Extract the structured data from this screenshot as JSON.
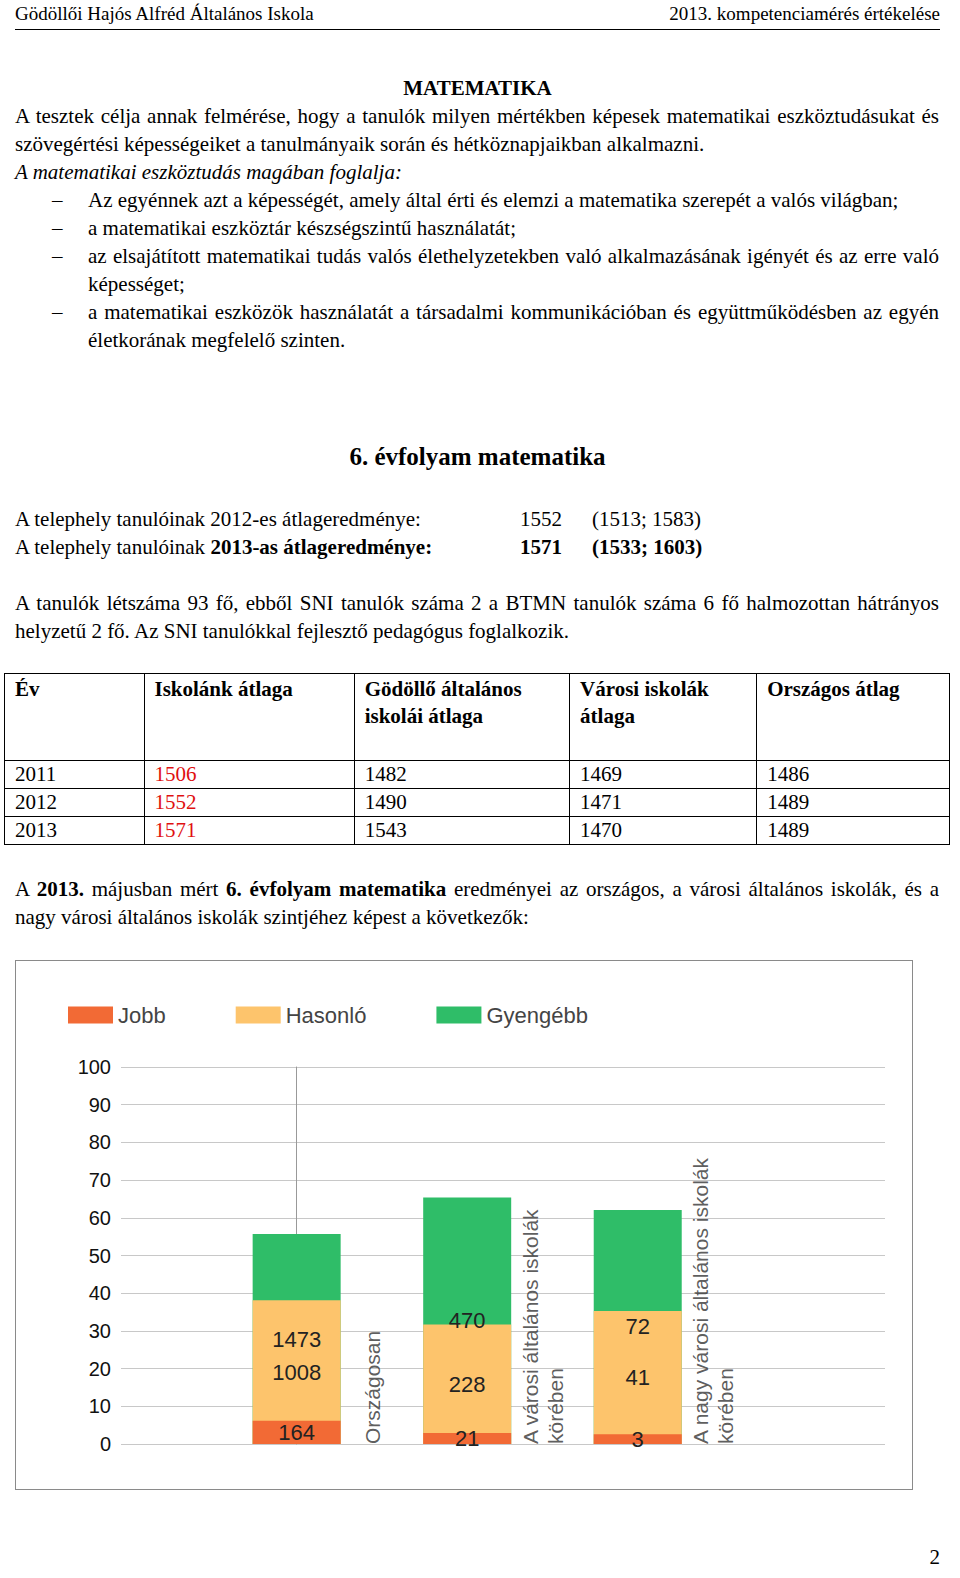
{
  "header": {
    "left": "Gödöllői Hajós Alfréd Általános Iskola",
    "right": "2013. kompetenciamérés értékelése"
  },
  "title": "MATEMATIKA",
  "intro": [
    {
      "kind": "p",
      "runs": [
        {
          "text": "A tesztek célja annak felmérése, hogy a tanulók milyen mértékben képesek matematikai eszköztudásukat és szövegértési képességeiket a tanulmányaik során és hétköznapjaikban alkalmazni."
        }
      ]
    },
    {
      "kind": "p",
      "runs": [
        {
          "text": "A matematikai eszköztudás magában foglalja:",
          "italic": true
        }
      ]
    },
    {
      "kind": "list",
      "bullet": "–",
      "items": [
        [
          {
            "text": "Az egyénnek azt a képességét, amely által érti és elemzi a matematika szerepét a valós világban;"
          }
        ],
        [
          {
            "text": "a matematikai eszköztár készségszintű használatát;"
          }
        ],
        [
          {
            "text": "az elsajátított matematikai tudás valós élethelyzetekben való alkalmazásának igényét és az erre való képességet;"
          }
        ],
        [
          {
            "text": "a matematikai eszközök használatát a társadalmi kommunikációban és együttműködésben az egyén életkorának megfelelő szinten."
          }
        ]
      ]
    }
  ],
  "heading": "6. évfolyam matematika",
  "results": [
    {
      "runs": [
        {
          "text": "A telephely tanulóinak 2012-es átlageredménye:"
        }
      ],
      "mean": "1552",
      "ci": "(1513; 1583)",
      "bold": false
    },
    {
      "runs": [
        {
          "text": "A telephely tanulóinak "
        },
        {
          "text": "2013-as átlageredménye:",
          "bold": true
        }
      ],
      "mean": "1571",
      "ci": "(1533; 1603)",
      "bold": true
    }
  ],
  "stats": [
    {
      "text": "A tanulók létszáma 93 fő, ebből SNI tanulók száma 2 a BTMN tanulók száma 6 fő halmozottan hátrányos helyzetű 2 fő. Az SNI tanulókkal fejlesztő pedagógus foglalkozik."
    }
  ],
  "table": {
    "header": [
      "Év",
      "Iskolánk átlaga",
      "Gödöllő általános iskolái átlaga",
      "Városi iskolák átlaga",
      "Országos átlag"
    ],
    "rows": [
      [
        2011,
        1506,
        1482,
        1469,
        1486
      ],
      [
        2012,
        1552,
        1490,
        1471,
        1489
      ],
      [
        2013,
        1571,
        1543,
        1470,
        1489
      ]
    ]
  },
  "closing": [
    {
      "text": "A "
    },
    {
      "text": "2013.",
      "bold": true
    },
    {
      "text": " májusban mért "
    },
    {
      "text": "6. évfolyam matematika",
      "bold": true
    },
    {
      "text": " eredményei az országos, a városi általános iskolák, és a nagy városi általános iskolák szintjéhez képest a következők:"
    }
  ],
  "page_number": "2",
  "chart_data": {
    "type": "bar",
    "stacked": true,
    "data_labels": true,
    "grid": true,
    "legend": "top-left",
    "categories": [
      "Országosan",
      "A városi általános iskolák\nkörében",
      "A nagy városi általános iskolák\nkörében"
    ],
    "ylim": [
      0,
      100
    ],
    "yticks": [
      0,
      10,
      20,
      30,
      40,
      50,
      60,
      70,
      80,
      90,
      100
    ],
    "series": [
      {
        "name": "Jobb",
        "color": "#f26a35",
        "values": [
          6.2,
          2.9,
          2.6
        ],
        "counts": [
          164,
          21,
          3
        ]
      },
      {
        "name": "Hasonló",
        "color": "#fdc46c",
        "values": [
          38.1,
          31.7,
          35.3
        ],
        "counts": [
          1008,
          228,
          41
        ]
      },
      {
        "name": "Gyengébb",
        "color": "#2fbd68",
        "values": [
          55.7,
          65.4,
          62.1
        ],
        "counts": [
          1473,
          470,
          72
        ]
      }
    ]
  }
}
